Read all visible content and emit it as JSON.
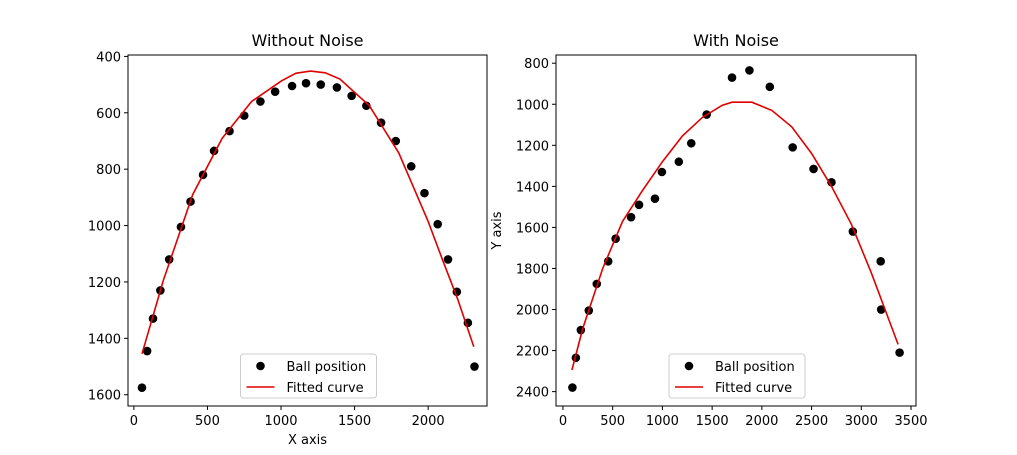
{
  "chart_data": [
    {
      "type": "scatter",
      "title": "Without Noise",
      "xlabel": "X axis",
      "ylabel": "",
      "xlim": [
        -40,
        2400
      ],
      "ylim": [
        1640,
        395
      ],
      "y_inverted": true,
      "xticks": [
        0,
        500,
        1000,
        1500,
        2000
      ],
      "yticks": [
        400,
        600,
        800,
        1000,
        1200,
        1400,
        1600
      ],
      "series": [
        {
          "name": "Ball position",
          "kind": "markers",
          "color": "#000000",
          "x": [
            55,
            90,
            130,
            180,
            240,
            320,
            385,
            470,
            545,
            650,
            750,
            860,
            960,
            1075,
            1170,
            1270,
            1380,
            1480,
            1580,
            1680,
            1780,
            1885,
            1975,
            2065,
            2135,
            2195,
            2270,
            2315
          ],
          "y": [
            1575,
            1445,
            1330,
            1230,
            1120,
            1005,
            915,
            820,
            735,
            665,
            610,
            560,
            525,
            505,
            495,
            500,
            510,
            540,
            575,
            635,
            700,
            790,
            885,
            995,
            1120,
            1235,
            1345,
            1500
          ]
        },
        {
          "name": "Fitted curve",
          "kind": "line",
          "color": "#e00000",
          "x": [
            55,
            200,
            400,
            600,
            800,
            1000,
            1100,
            1200,
            1300,
            1400,
            1600,
            1800,
            2000,
            2100,
            2200,
            2310
          ],
          "y": [
            1455,
            1195,
            890,
            690,
            560,
            488,
            460,
            452,
            458,
            480,
            575,
            742,
            985,
            1125,
            1260,
            1430
          ]
        }
      ],
      "legend": {
        "location": "lower-center",
        "entries": [
          "Ball position",
          "Fitted curve"
        ]
      }
    },
    {
      "type": "scatter",
      "title": "With Noise",
      "xlabel": "",
      "ylabel": "Y axis",
      "xlim": [
        -70,
        3550
      ],
      "ylim": [
        2470,
        760
      ],
      "y_inverted": true,
      "xticks": [
        0,
        500,
        1000,
        1500,
        2000,
        2500,
        3000,
        3500
      ],
      "yticks": [
        800,
        1000,
        1200,
        1400,
        1600,
        1800,
        2000,
        2200,
        2400
      ],
      "series": [
        {
          "name": "Ball position",
          "kind": "markers",
          "color": "#000000",
          "x": [
            95,
            130,
            180,
            260,
            340,
            455,
            530,
            685,
            765,
            925,
            995,
            1165,
            1290,
            1445,
            1700,
            1875,
            2080,
            2310,
            2520,
            2700,
            2915,
            3195,
            3200,
            3385
          ],
          "y": [
            2380,
            2235,
            2100,
            2005,
            1875,
            1765,
            1655,
            1550,
            1490,
            1460,
            1330,
            1280,
            1190,
            1050,
            870,
            835,
            915,
            1210,
            1315,
            1380,
            1620,
            1765,
            2000,
            2210
          ]
        },
        {
          "name": "Fitted curve",
          "kind": "line",
          "color": "#e00000",
          "x": [
            90,
            200,
            400,
            600,
            800,
            1000,
            1200,
            1400,
            1600,
            1700,
            1900,
            2100,
            2300,
            2500,
            2700,
            2900,
            3100,
            3370
          ],
          "y": [
            2295,
            2090,
            1800,
            1570,
            1420,
            1280,
            1155,
            1065,
            1005,
            990,
            990,
            1030,
            1110,
            1240,
            1400,
            1585,
            1820,
            2170
          ]
        }
      ],
      "legend": {
        "location": "lower-center",
        "entries": [
          "Ball position",
          "Fitted curve"
        ]
      }
    }
  ]
}
